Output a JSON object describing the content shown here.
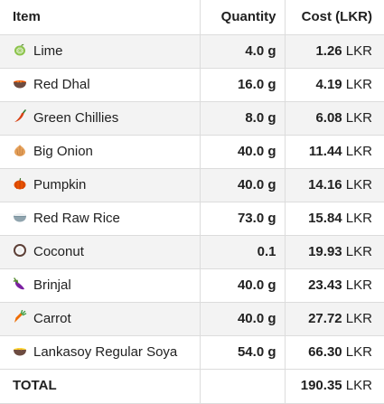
{
  "table": {
    "headers": {
      "item": "Item",
      "quantity": "Quantity",
      "cost": "Cost (LKR)"
    },
    "rows": [
      {
        "name": "Lime",
        "icon": "lime-icon",
        "qty": "4.0 g",
        "cost": "1.26",
        "unit": " LKR"
      },
      {
        "name": "Red Dhal",
        "icon": "lentil-bowl-icon",
        "qty": "16.0 g",
        "cost": "4.19",
        "unit": " LKR"
      },
      {
        "name": "Green Chillies",
        "icon": "chilli-icon",
        "qty": "8.0 g",
        "cost": "6.08",
        "unit": " LKR"
      },
      {
        "name": "Big Onion",
        "icon": "onion-icon",
        "qty": "40.0 g",
        "cost": "11.44",
        "unit": " LKR"
      },
      {
        "name": "Pumpkin",
        "icon": "pumpkin-icon",
        "qty": "40.0 g",
        "cost": "14.16",
        "unit": " LKR"
      },
      {
        "name": "Red Raw Rice",
        "icon": "rice-bowl-icon",
        "qty": "73.0 g",
        "cost": "15.84",
        "unit": " LKR"
      },
      {
        "name": "Coconut",
        "icon": "coconut-icon",
        "qty": "0.1",
        "cost": "19.93",
        "unit": " LKR"
      },
      {
        "name": "Brinjal",
        "icon": "eggplant-icon",
        "qty": "40.0 g",
        "cost": "23.43",
        "unit": " LKR"
      },
      {
        "name": "Carrot",
        "icon": "carrot-icon",
        "qty": "40.0 g",
        "cost": "27.72",
        "unit": " LKR"
      },
      {
        "name": "Lankasoy Regular Soya",
        "icon": "soya-bowl-icon",
        "qty": "54.0 g",
        "cost": "66.30",
        "unit": " LKR"
      }
    ],
    "total": {
      "label": "TOTAL",
      "cost": "190.35",
      "unit": " LKR"
    }
  }
}
